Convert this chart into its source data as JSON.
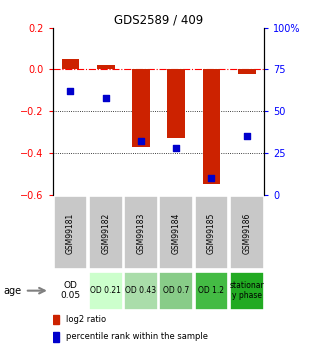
{
  "title": "GDS2589 / 409",
  "samples": [
    "GSM99181",
    "GSM99182",
    "GSM99183",
    "GSM99184",
    "GSM99185",
    "GSM99186"
  ],
  "log2_ratio": [
    0.05,
    0.02,
    -0.37,
    -0.33,
    -0.55,
    -0.02
  ],
  "percentile_rank": [
    62,
    58,
    32,
    28,
    10,
    35
  ],
  "ylim_left": [
    -0.6,
    0.2
  ],
  "ylim_right": [
    0,
    100
  ],
  "yticks_left": [
    0.2,
    0.0,
    -0.2,
    -0.4,
    -0.6
  ],
  "yticks_right": [
    100,
    75,
    50,
    25,
    0
  ],
  "bar_color": "#cc2200",
  "dot_color": "#0000cc",
  "age_labels": [
    "OD\n0.05",
    "OD 0.21",
    "OD 0.43",
    "OD 0.7",
    "OD 1.2",
    "stationar\ny phase"
  ],
  "age_bg_colors": [
    "#ffffff",
    "#ccffcc",
    "#aaddaa",
    "#88cc88",
    "#44bb44",
    "#22aa22"
  ],
  "gsm_bg_color": "#c8c8c8",
  "hline_y": 0.0,
  "dotted_lines": [
    -0.2,
    -0.4
  ],
  "legend_red": "log2 ratio",
  "legend_blue": "percentile rank within the sample",
  "bar_width": 0.5
}
